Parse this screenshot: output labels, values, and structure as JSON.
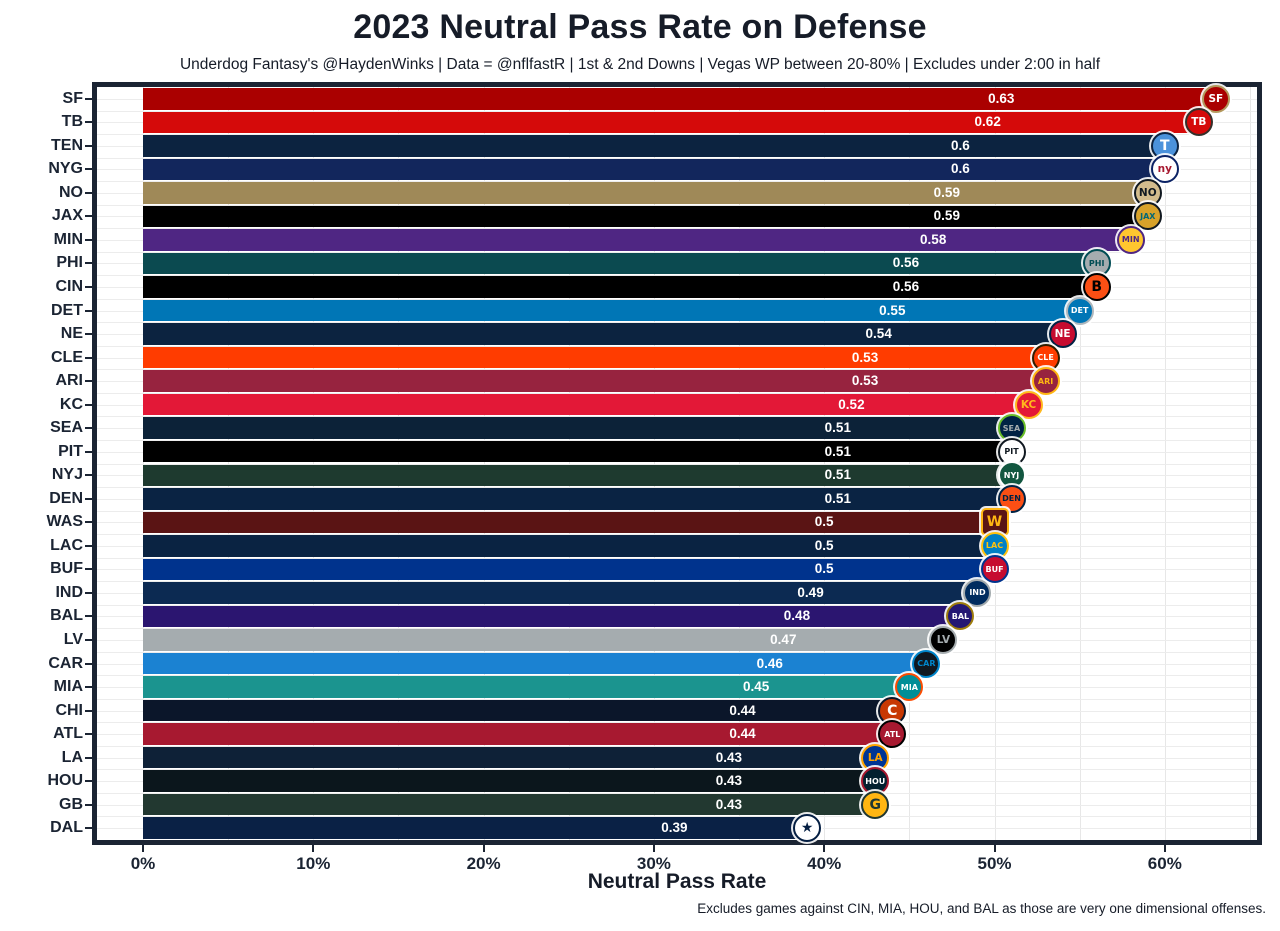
{
  "chart_data": {
    "type": "bar",
    "orientation": "horizontal",
    "title": "2023 Neutral Pass Rate on Defense",
    "subtitle": "Underdog Fantasy's @HaydenWinks | Data = @nflfastR | 1st & 2nd Downs | Vegas WP between 20-80% | Excludes under 2:00 in half",
    "xlabel": "Neutral Pass Rate",
    "ylabel": "",
    "caption": "Excludes games against CIN, MIA, HOU, and BAL as those are very one dimensional offenses.",
    "x_axis": {
      "ticks": [
        {
          "pct": 0,
          "label": "0%"
        },
        {
          "pct": 10,
          "label": "10%"
        },
        {
          "pct": 20,
          "label": "20%"
        },
        {
          "pct": 30,
          "label": "30%"
        },
        {
          "pct": 40,
          "label": "40%"
        },
        {
          "pct": 50,
          "label": "50%"
        },
        {
          "pct": 60,
          "label": "60%"
        }
      ],
      "minor_gridline_step_pct": 5,
      "xlim_pct": [
        -2.7,
        65.9
      ],
      "grid": true
    },
    "categories": [
      "SF",
      "TB",
      "TEN",
      "NYG",
      "NO",
      "JAX",
      "MIN",
      "PHI",
      "CIN",
      "DET",
      "NE",
      "CLE",
      "ARI",
      "KC",
      "SEA",
      "PIT",
      "NYJ",
      "DEN",
      "WAS",
      "LAC",
      "BUF",
      "IND",
      "BAL",
      "LV",
      "CAR",
      "MIA",
      "CHI",
      "ATL",
      "LA",
      "HOU",
      "GB",
      "DAL"
    ],
    "values": [
      0.63,
      0.62,
      0.6,
      0.6,
      0.59,
      0.59,
      0.58,
      0.56,
      0.56,
      0.55,
      0.54,
      0.53,
      0.53,
      0.52,
      0.51,
      0.51,
      0.51,
      0.51,
      0.5,
      0.5,
      0.5,
      0.49,
      0.48,
      0.47,
      0.46,
      0.45,
      0.44,
      0.44,
      0.43,
      0.43,
      0.43,
      0.39
    ],
    "teams": [
      {
        "abbr": "SF",
        "value": 0.63,
        "value_label": "0.63",
        "bar_color": "#AA0000",
        "badge": {
          "text": "SF",
          "bg": "#AA0000",
          "ring": "#B3995D",
          "fg": "#FFFFFF",
          "shape": "circle"
        }
      },
      {
        "abbr": "TB",
        "value": 0.62,
        "value_label": "0.62",
        "bar_color": "#D50A0A",
        "badge": {
          "text": "TB",
          "bg": "#D50A0A",
          "ring": "#34302B",
          "fg": "#FFFFFF",
          "shape": "circle"
        }
      },
      {
        "abbr": "TEN",
        "value": 0.6,
        "value_label": "0.6",
        "bar_color": "#0C2340",
        "badge": {
          "text": "T",
          "bg": "#4B92DB",
          "ring": "#0C2340",
          "fg": "#FFFFFF",
          "shape": "circle"
        }
      },
      {
        "abbr": "NYG",
        "value": 0.6,
        "value_label": "0.6",
        "bar_color": "#12265C",
        "badge": {
          "text": "ny",
          "bg": "#FFFFFF",
          "ring": "#0B2265",
          "fg": "#A71930",
          "shape": "circle"
        }
      },
      {
        "abbr": "NO",
        "value": 0.59,
        "value_label": "0.59",
        "bar_color": "#9F8958",
        "badge": {
          "text": "NO",
          "bg": "#D3BC8D",
          "ring": "#101820",
          "fg": "#101820",
          "shape": "circle"
        }
      },
      {
        "abbr": "JAX",
        "value": 0.59,
        "value_label": "0.59",
        "bar_color": "#000000",
        "badge": {
          "text": "JAX",
          "bg": "#D7A22A",
          "ring": "#101820",
          "fg": "#006778",
          "shape": "circle"
        }
      },
      {
        "abbr": "MIN",
        "value": 0.58,
        "value_label": "0.58",
        "bar_color": "#4F2683",
        "badge": {
          "text": "MIN",
          "bg": "#FFC62F",
          "ring": "#4F2683",
          "fg": "#4F2683",
          "shape": "circle"
        }
      },
      {
        "abbr": "PHI",
        "value": 0.56,
        "value_label": "0.56",
        "bar_color": "#0B4A50",
        "badge": {
          "text": "PHI",
          "bg": "#A5ACAF",
          "ring": "#004C54",
          "fg": "#004C54",
          "shape": "circle"
        }
      },
      {
        "abbr": "CIN",
        "value": 0.56,
        "value_label": "0.56",
        "bar_color": "#000000",
        "badge": {
          "text": "B",
          "bg": "#FB4F14",
          "ring": "#000000",
          "fg": "#000000",
          "shape": "circle"
        }
      },
      {
        "abbr": "DET",
        "value": 0.55,
        "value_label": "0.55",
        "bar_color": "#0076B6",
        "badge": {
          "text": "DET",
          "bg": "#0076B6",
          "ring": "#B0B7BC",
          "fg": "#FFFFFF",
          "shape": "circle"
        }
      },
      {
        "abbr": "NE",
        "value": 0.54,
        "value_label": "0.54",
        "bar_color": "#0C2340",
        "badge": {
          "text": "NE",
          "bg": "#C60C30",
          "ring": "#002244",
          "fg": "#FFFFFF",
          "shape": "circle"
        }
      },
      {
        "abbr": "CLE",
        "value": 0.53,
        "value_label": "0.53",
        "bar_color": "#FF3C00",
        "badge": {
          "text": "CLE",
          "bg": "#FF3C00",
          "ring": "#311D00",
          "fg": "#FFFFFF",
          "shape": "circle"
        }
      },
      {
        "abbr": "ARI",
        "value": 0.53,
        "value_label": "0.53",
        "bar_color": "#97233F",
        "badge": {
          "text": "ARI",
          "bg": "#97233F",
          "ring": "#FFB612",
          "fg": "#FFB612",
          "shape": "circle"
        }
      },
      {
        "abbr": "KC",
        "value": 0.52,
        "value_label": "0.52",
        "bar_color": "#E31837",
        "badge": {
          "text": "KC",
          "bg": "#E31837",
          "ring": "#FFB81C",
          "fg": "#FFB81C",
          "shape": "circle"
        }
      },
      {
        "abbr": "SEA",
        "value": 0.51,
        "value_label": "0.51",
        "bar_color": "#0C2238",
        "badge": {
          "text": "SEA",
          "bg": "#002244",
          "ring": "#69BE28",
          "fg": "#A5ACAF",
          "shape": "circle"
        }
      },
      {
        "abbr": "PIT",
        "value": 0.51,
        "value_label": "0.51",
        "bar_color": "#000000",
        "badge": {
          "text": "PIT",
          "bg": "#FFFFFF",
          "ring": "#101820",
          "fg": "#101820",
          "shape": "circle"
        }
      },
      {
        "abbr": "NYJ",
        "value": 0.51,
        "value_label": "0.51",
        "bar_color": "#1E3A2F",
        "badge": {
          "text": "NYJ",
          "bg": "#125740",
          "ring": "#FFFFFF",
          "fg": "#FFFFFF",
          "shape": "circle"
        }
      },
      {
        "abbr": "DEN",
        "value": 0.51,
        "value_label": "0.51",
        "bar_color": "#0A2343",
        "badge": {
          "text": "DEN",
          "bg": "#FB4F14",
          "ring": "#002244",
          "fg": "#002244",
          "shape": "circle"
        }
      },
      {
        "abbr": "WAS",
        "value": 0.5,
        "value_label": "0.5",
        "bar_color": "#5A1414",
        "badge": {
          "text": "W",
          "bg": "#5A1414",
          "ring": "#FFB612",
          "fg": "#FFB612",
          "shape": "square"
        }
      },
      {
        "abbr": "LAC",
        "value": 0.5,
        "value_label": "0.5",
        "bar_color": "#0A2342",
        "badge": {
          "text": "LAC",
          "bg": "#0080C6",
          "ring": "#FFC20E",
          "fg": "#FFC20E",
          "shape": "circle"
        }
      },
      {
        "abbr": "BUF",
        "value": 0.5,
        "value_label": "0.5",
        "bar_color": "#00338D",
        "badge": {
          "text": "BUF",
          "bg": "#C60C30",
          "ring": "#00338D",
          "fg": "#FFFFFF",
          "shape": "circle"
        }
      },
      {
        "abbr": "IND",
        "value": 0.49,
        "value_label": "0.49",
        "bar_color": "#0C2A52",
        "badge": {
          "text": "IND",
          "bg": "#002C5F",
          "ring": "#A2AAAD",
          "fg": "#FFFFFF",
          "shape": "circle"
        }
      },
      {
        "abbr": "BAL",
        "value": 0.48,
        "value_label": "0.48",
        "bar_color": "#2B1570",
        "badge": {
          "text": "BAL",
          "bg": "#241773",
          "ring": "#9E7C0C",
          "fg": "#FFFFFF",
          "shape": "circle"
        }
      },
      {
        "abbr": "LV",
        "value": 0.47,
        "value_label": "0.47",
        "bar_color": "#A5ACAF",
        "badge": {
          "text": "LV",
          "bg": "#000000",
          "ring": "#A5ACAF",
          "fg": "#A5ACAF",
          "shape": "circle"
        }
      },
      {
        "abbr": "CAR",
        "value": 0.46,
        "value_label": "0.46",
        "bar_color": "#1B82D2",
        "badge": {
          "text": "CAR",
          "bg": "#101820",
          "ring": "#0085CA",
          "fg": "#0085CA",
          "shape": "circle"
        }
      },
      {
        "abbr": "MIA",
        "value": 0.45,
        "value_label": "0.45",
        "bar_color": "#1B948F",
        "badge": {
          "text": "MIA",
          "bg": "#008E97",
          "ring": "#FC4C02",
          "fg": "#FFFFFF",
          "shape": "circle"
        }
      },
      {
        "abbr": "CHI",
        "value": 0.44,
        "value_label": "0.44",
        "bar_color": "#0B162A",
        "badge": {
          "text": "C",
          "bg": "#C83803",
          "ring": "#0B162A",
          "fg": "#FFFFFF",
          "shape": "circle"
        }
      },
      {
        "abbr": "ATL",
        "value": 0.44,
        "value_label": "0.44",
        "bar_color": "#A71930",
        "badge": {
          "text": "ATL",
          "bg": "#A71930",
          "ring": "#000000",
          "fg": "#FFFFFF",
          "shape": "circle"
        }
      },
      {
        "abbr": "LA",
        "value": 0.43,
        "value_label": "0.43",
        "bar_color": "#0E2137",
        "badge": {
          "text": "LA",
          "bg": "#003594",
          "ring": "#FFA300",
          "fg": "#FFA300",
          "shape": "circle"
        }
      },
      {
        "abbr": "HOU",
        "value": 0.43,
        "value_label": "0.43",
        "bar_color": "#0B161C",
        "badge": {
          "text": "HOU",
          "bg": "#03202F",
          "ring": "#A71930",
          "fg": "#FFFFFF",
          "shape": "circle"
        }
      },
      {
        "abbr": "GB",
        "value": 0.43,
        "value_label": "0.43",
        "bar_color": "#223830",
        "badge": {
          "text": "G",
          "bg": "#FFB612",
          "ring": "#203731",
          "fg": "#203731",
          "shape": "circle"
        }
      },
      {
        "abbr": "DAL",
        "value": 0.39,
        "value_label": "0.39",
        "bar_color": "#0A2145",
        "badge": {
          "text": "★",
          "bg": "#FFFFFF",
          "ring": "#041E42",
          "fg": "#041E42",
          "shape": "circle"
        }
      }
    ],
    "legend": "none",
    "value_label_color": "#FFFFFF",
    "panel_border_color": "#1B2433",
    "gridline_color": "#ECECEC",
    "text_color": "#161C28"
  }
}
